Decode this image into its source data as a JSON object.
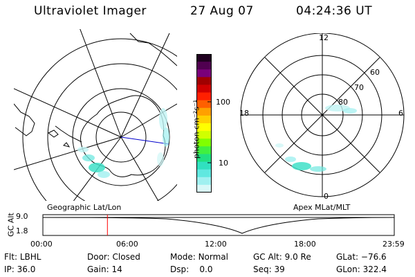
{
  "header": {
    "instrument": "Ultraviolet Imager",
    "date": "27 Aug 07",
    "time": "04:24:36 UT"
  },
  "colorbar": {
    "unit_label": "photon cm⁻²s⁻¹",
    "ticks": [
      "100",
      "10"
    ],
    "colors": [
      "#200020",
      "#500050",
      "#7a007a",
      "#a00000",
      "#d00000",
      "#ff2000",
      "#ff6000",
      "#ffa000",
      "#ffd000",
      "#ffff00",
      "#d0ff00",
      "#80ff00",
      "#40f040",
      "#20e080",
      "#30e0c0",
      "#60e8e0",
      "#a0f0f0",
      "#d8f8f8"
    ]
  },
  "left_map": {
    "label": "Geographic Lat/Lon"
  },
  "right_map": {
    "label": "Apex  MLat/MLT",
    "mlt_labels": {
      "top": "12",
      "left": "18",
      "right": "6",
      "bottom": "0"
    },
    "lat_labels": [
      "60",
      "70",
      "80"
    ]
  },
  "timeline": {
    "ylabel": "GC Alt",
    "yticks": [
      "9.0",
      "1.8"
    ],
    "xticks": [
      "00:00",
      "06:00",
      "12:00",
      "18:00",
      "23:59"
    ],
    "current_marker_hours": 4.41,
    "accent": "#ff0000"
  },
  "info": {
    "row1": [
      {
        "label": "Flt:",
        "value": "LBHL"
      },
      {
        "label": "Door:",
        "value": "Closed"
      },
      {
        "label": "Mode:",
        "value": "Normal"
      },
      {
        "label": "GC Alt:",
        "value": "9.0 Re"
      },
      {
        "label": "GLat:",
        "value": "−76.6"
      }
    ],
    "row2": [
      {
        "label": "IP:",
        "value": "36.0"
      },
      {
        "label": "Gain:",
        "value": "14"
      },
      {
        "label": "Dsp:",
        "value": "0.0"
      },
      {
        "label": "Seq:",
        "value": "39"
      },
      {
        "label": "GLon:",
        "value": "322.4"
      }
    ]
  }
}
